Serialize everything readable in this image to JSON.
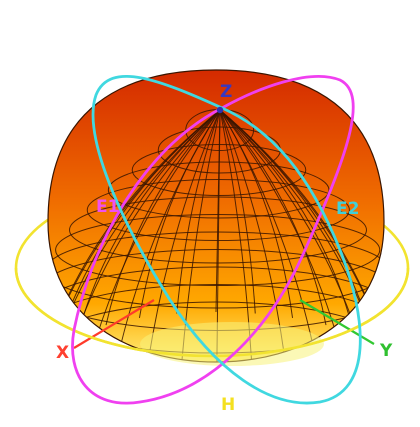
{
  "labels": {
    "z": "Z",
    "x": "X",
    "y": "Y",
    "h": "H",
    "e1": "E1",
    "e2": "E2"
  },
  "colors": {
    "background": "#ffffff",
    "sphere_top": "#d42a00",
    "sphere_mid": "#f06d00",
    "sphere_low": "#ffa800",
    "sphere_bottom": "#fff07a",
    "mesh": "#3a1500",
    "h_plane": "#f2e330",
    "e1_plane": "#f040f0",
    "e2_plane": "#40d8e0",
    "x_axis": "#ff3a2a",
    "y_axis": "#32c832",
    "z_axis": "#3030b0",
    "h_label": "#f4e020",
    "x_label": "#ff4030",
    "y_label": "#30c030",
    "z_label": "#3838c0",
    "e1_label": "#f050f0",
    "e2_label": "#40d0d8"
  }
}
